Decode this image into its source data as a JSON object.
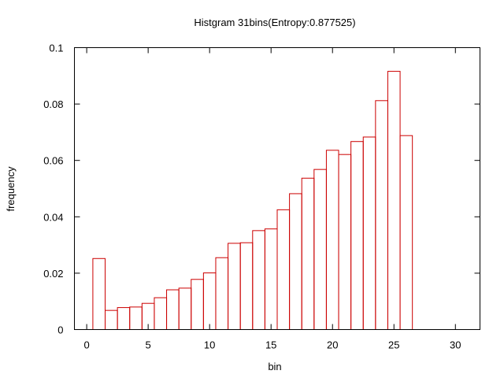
{
  "chart_data": {
    "type": "bar",
    "title": "Histgram 31bins(Entropy:0.877525)",
    "xlabel": "bin",
    "ylabel": "frequency",
    "xlim": [
      -1,
      32
    ],
    "ylim": [
      0,
      0.1
    ],
    "xticks": [
      0,
      5,
      10,
      15,
      20,
      25,
      30
    ],
    "yticks": [
      0,
      0.02,
      0.04,
      0.06,
      0.08,
      0.1
    ],
    "xtick_labels": [
      "0",
      "5",
      "10",
      "15",
      "20",
      "25",
      "30"
    ],
    "ytick_labels": [
      "0",
      "0.02",
      "0.04",
      "0.06",
      "0.08",
      "0.1"
    ],
    "bar_color": "#cc0000",
    "grid": false,
    "bins": [
      1,
      2,
      3,
      4,
      5,
      6,
      7,
      8,
      9,
      10,
      11,
      12,
      13,
      14,
      15,
      16,
      17,
      18,
      19,
      20,
      21,
      22,
      23,
      24,
      25,
      26
    ],
    "values": [
      0.0252,
      0.0068,
      0.0078,
      0.008,
      0.0093,
      0.0113,
      0.0141,
      0.0147,
      0.0178,
      0.0201,
      0.0255,
      0.0306,
      0.0308,
      0.0351,
      0.0357,
      0.0425,
      0.0482,
      0.0537,
      0.0568,
      0.0636,
      0.0621,
      0.0667,
      0.0683,
      0.0812,
      0.0916,
      0.0688
    ]
  }
}
